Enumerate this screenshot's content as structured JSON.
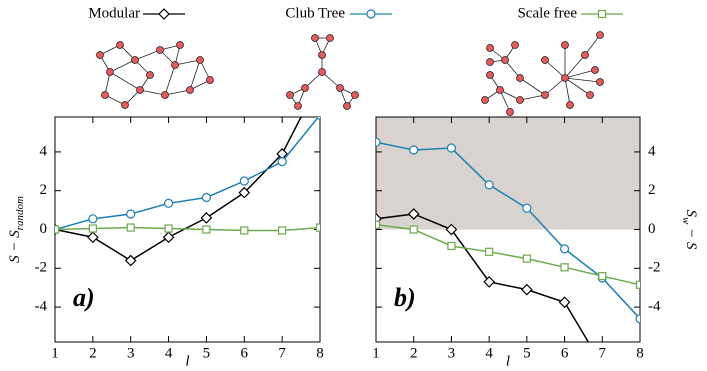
{
  "chart_data": [
    {
      "type": "line",
      "panel_label": "a)",
      "xlabel": "l",
      "ylabel": {
        "main": "S − S",
        "sub": "random"
      },
      "x": [
        1,
        2,
        3,
        4,
        5,
        6,
        7,
        8
      ],
      "xlim": [
        1,
        8
      ],
      "xticks": [
        1,
        2,
        3,
        4,
        5,
        6,
        7,
        8
      ],
      "ylim": [
        -5.8,
        5.8
      ],
      "yticks": [
        -4,
        -2,
        0,
        2,
        4
      ],
      "y_axis_side": "left",
      "series": [
        {
          "name": "Modular",
          "color": "#000000",
          "marker": "diamond",
          "values": [
            0,
            -0.4,
            -1.6,
            -0.4,
            0.6,
            1.9,
            3.9,
            7.7
          ]
        },
        {
          "name": "Club Tree",
          "color": "#1a80b4",
          "marker": "circle",
          "values": [
            0,
            0.55,
            0.8,
            1.35,
            1.65,
            2.5,
            3.5,
            5.9
          ]
        },
        {
          "name": "Scale free",
          "color": "#6aab4a",
          "marker": "square",
          "values": [
            0,
            0.05,
            0.1,
            0.05,
            0.0,
            -0.05,
            -0.05,
            0.1
          ]
        }
      ]
    },
    {
      "type": "line",
      "panel_label": "b)",
      "xlabel": "l",
      "ylabel": {
        "main": "S",
        "sub": "w",
        "rest": " − S"
      },
      "x": [
        1,
        2,
        3,
        4,
        5,
        6,
        7,
        8
      ],
      "xlim": [
        1,
        8
      ],
      "xticks": [
        1,
        2,
        3,
        4,
        5,
        6,
        7,
        8
      ],
      "ylim": [
        -5.8,
        5.8
      ],
      "yticks": [
        -4,
        -2,
        0,
        2,
        4
      ],
      "y_axis_side": "right",
      "shade": {
        "from": 0,
        "to": 5.8,
        "color": "#d8d3cf"
      },
      "series": [
        {
          "color": "#000000",
          "marker": "diamond",
          "values": [
            0.55,
            0.8,
            0.0,
            -2.7,
            -3.1,
            -3.75,
            -7.0,
            null
          ]
        },
        {
          "color": "#1a80b4",
          "marker": "circle",
          "values": [
            4.5,
            4.1,
            4.2,
            2.3,
            1.1,
            -1.0,
            -2.5,
            -4.6
          ]
        },
        {
          "color": "#6aab4a",
          "marker": "square",
          "values": [
            0.25,
            0.0,
            -0.85,
            -1.15,
            -1.5,
            -1.95,
            -2.4,
            -2.85
          ]
        }
      ]
    }
  ]
}
